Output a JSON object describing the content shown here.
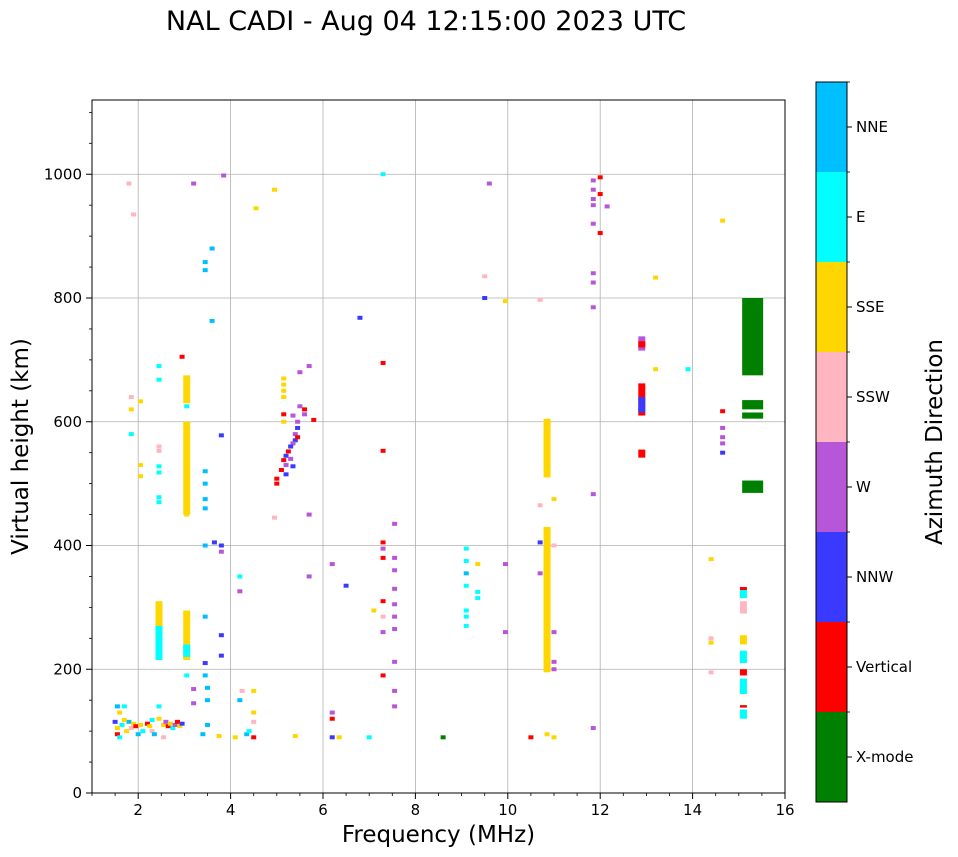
{
  "chart_data": {
    "type": "scatter",
    "title": "NAL CADI - Aug 04 12:15:00 2023 UTC",
    "xlabel": "Frequency (MHz)",
    "ylabel": "Virtual height (km)",
    "xlim": [
      1,
      16
    ],
    "ylim": [
      0,
      1120
    ],
    "x_ticks": [
      "2",
      "4",
      "6",
      "8",
      "10",
      "12",
      "14",
      "16"
    ],
    "y_ticks": [
      "0",
      "200",
      "400",
      "600",
      "800",
      "1000"
    ],
    "grid": true,
    "colorbar": {
      "label": "Azimuth Direction",
      "categories": [
        {
          "name": "X-mode",
          "color": "#008000"
        },
        {
          "name": "Vertical",
          "color": "#ff0000"
        },
        {
          "name": "NNW",
          "color": "#3a3aff"
        },
        {
          "name": "W",
          "color": "#b656d8"
        },
        {
          "name": "SSW",
          "color": "#ffb6c1"
        },
        {
          "name": "SSE",
          "color": "#ffd700"
        },
        {
          "name": "E",
          "color": "#00ffff"
        },
        {
          "name": "NNE",
          "color": "#00bfff"
        }
      ]
    },
    "echo_segments": [
      {
        "dir": "X-mode",
        "x": 15.3,
        "y0": 675,
        "y1": 800
      },
      {
        "dir": "X-mode",
        "x": 15.3,
        "y0": 620,
        "y1": 635
      },
      {
        "dir": "X-mode",
        "x": 15.3,
        "y0": 605,
        "y1": 615
      },
      {
        "dir": "X-mode",
        "x": 15.3,
        "y0": 485,
        "y1": 505
      },
      {
        "dir": "SSE",
        "x": 10.85,
        "y0": 510,
        "y1": 605
      },
      {
        "dir": "SSE",
        "x": 10.85,
        "y0": 195,
        "y1": 430
      },
      {
        "dir": "SSE",
        "x": 3.05,
        "y0": 450,
        "y1": 600
      },
      {
        "dir": "SSE",
        "x": 3.05,
        "y0": 630,
        "y1": 675
      },
      {
        "dir": "SSE",
        "x": 3.05,
        "y0": 215,
        "y1": 295
      },
      {
        "dir": "SSE",
        "x": 2.45,
        "y0": 220,
        "y1": 310
      },
      {
        "dir": "E",
        "x": 2.45,
        "y0": 215,
        "y1": 270
      },
      {
        "dir": "E",
        "x": 3.05,
        "y0": 220,
        "y1": 240
      },
      {
        "dir": "Vertical",
        "x": 12.9,
        "y0": 610,
        "y1": 662
      },
      {
        "dir": "NNW",
        "x": 12.9,
        "y0": 615,
        "y1": 640
      },
      {
        "dir": "W",
        "x": 12.9,
        "y0": 715,
        "y1": 738
      },
      {
        "dir": "Vertical",
        "x": 12.9,
        "y0": 720,
        "y1": 730
      },
      {
        "dir": "Vertical",
        "x": 12.9,
        "y0": 542,
        "y1": 555
      },
      {
        "dir": "SSW",
        "x": 15.1,
        "y0": 290,
        "y1": 310
      },
      {
        "dir": "E",
        "x": 15.1,
        "y0": 160,
        "y1": 185
      },
      {
        "dir": "E",
        "x": 15.1,
        "y0": 120,
        "y1": 135
      },
      {
        "dir": "E",
        "x": 15.1,
        "y0": 210,
        "y1": 230
      },
      {
        "dir": "E",
        "x": 15.1,
        "y0": 315,
        "y1": 330
      },
      {
        "dir": "SSE",
        "x": 15.1,
        "y0": 240,
        "y1": 255
      },
      {
        "dir": "Vertical",
        "x": 15.1,
        "y0": 190,
        "y1": 200
      },
      {
        "dir": "Vertical",
        "x": 15.1,
        "y0": 138,
        "y1": 142
      },
      {
        "dir": "Vertical",
        "x": 15.1,
        "y0": 328,
        "y1": 333
      }
    ],
    "echo_points": [
      {
        "dir": "E",
        "x": 2.45,
        "y": 690
      },
      {
        "dir": "E",
        "x": 2.45,
        "y": 668
      },
      {
        "dir": "E",
        "x": 2.45,
        "y": 528
      },
      {
        "dir": "E",
        "x": 2.45,
        "y": 518
      },
      {
        "dir": "E",
        "x": 2.45,
        "y": 478
      },
      {
        "dir": "E",
        "x": 2.45,
        "y": 470
      },
      {
        "dir": "SSW",
        "x": 2.45,
        "y": 560
      },
      {
        "dir": "SSW",
        "x": 2.45,
        "y": 553
      },
      {
        "dir": "E",
        "x": 2.45,
        "y": 140
      },
      {
        "dir": "SSE",
        "x": 2.45,
        "y": 120
      },
      {
        "dir": "NNE",
        "x": 3.45,
        "y": 858
      },
      {
        "dir": "NNE",
        "x": 3.45,
        "y": 845
      },
      {
        "dir": "NNE",
        "x": 3.6,
        "y": 880
      },
      {
        "dir": "NNE",
        "x": 3.6,
        "y": 763
      },
      {
        "dir": "NNE",
        "x": 3.45,
        "y": 520
      },
      {
        "dir": "NNE",
        "x": 3.45,
        "y": 500
      },
      {
        "dir": "NNE",
        "x": 3.45,
        "y": 475
      },
      {
        "dir": "NNE",
        "x": 3.45,
        "y": 460
      },
      {
        "dir": "NNE",
        "x": 3.45,
        "y": 400
      },
      {
        "dir": "NNE",
        "x": 3.45,
        "y": 285
      },
      {
        "dir": "NNW",
        "x": 3.45,
        "y": 210
      },
      {
        "dir": "NNE",
        "x": 3.45,
        "y": 190
      },
      {
        "dir": "NNE",
        "x": 3.5,
        "y": 170
      },
      {
        "dir": "NNE",
        "x": 3.5,
        "y": 150
      },
      {
        "dir": "NNE",
        "x": 3.5,
        "y": 110
      },
      {
        "dir": "NNE",
        "x": 3.4,
        "y": 95
      },
      {
        "dir": "NNW",
        "x": 3.8,
        "y": 400
      },
      {
        "dir": "W",
        "x": 3.8,
        "y": 390
      },
      {
        "dir": "NNW",
        "x": 3.8,
        "y": 255
      },
      {
        "dir": "NNW",
        "x": 3.8,
        "y": 222
      },
      {
        "dir": "NNW",
        "x": 3.65,
        "y": 405
      },
      {
        "dir": "NNW",
        "x": 3.8,
        "y": 578
      },
      {
        "dir": "E",
        "x": 4.2,
        "y": 350
      },
      {
        "dir": "W",
        "x": 4.2,
        "y": 326
      },
      {
        "dir": "NNE",
        "x": 4.2,
        "y": 150
      },
      {
        "dir": "NNE",
        "x": 4.35,
        "y": 95
      },
      {
        "dir": "E",
        "x": 4.4,
        "y": 100
      },
      {
        "dir": "SSW",
        "x": 4.5,
        "y": 115
      },
      {
        "dir": "SSE",
        "x": 4.5,
        "y": 130
      },
      {
        "dir": "SSE",
        "x": 4.5,
        "y": 165
      },
      {
        "dir": "SSW",
        "x": 4.25,
        "y": 165
      },
      {
        "dir": "Vertical",
        "x": 4.5,
        "y": 90
      },
      {
        "dir": "SSE",
        "x": 3.75,
        "y": 92
      },
      {
        "dir": "SSE",
        "x": 4.1,
        "y": 90
      },
      {
        "dir": "SSE",
        "x": 4.55,
        "y": 945
      },
      {
        "dir": "SSE",
        "x": 4.95,
        "y": 975
      },
      {
        "dir": "W",
        "x": 3.85,
        "y": 998
      },
      {
        "dir": "W",
        "x": 3.2,
        "y": 985
      },
      {
        "dir": "SSW",
        "x": 1.8,
        "y": 985
      },
      {
        "dir": "SSW",
        "x": 1.9,
        "y": 935
      },
      {
        "dir": "SSW",
        "x": 1.85,
        "y": 640
      },
      {
        "dir": "SSE",
        "x": 2.05,
        "y": 633
      },
      {
        "dir": "SSE",
        "x": 1.85,
        "y": 620
      },
      {
        "dir": "E",
        "x": 1.85,
        "y": 580
      },
      {
        "dir": "SSE",
        "x": 2.05,
        "y": 530
      },
      {
        "dir": "SSE",
        "x": 2.05,
        "y": 512
      },
      {
        "dir": "SSE",
        "x": 3.05,
        "y": 450
      },
      {
        "dir": "W",
        "x": 3.2,
        "y": 168
      },
      {
        "dir": "E",
        "x": 3.05,
        "y": 190
      },
      {
        "dir": "W",
        "x": 3.2,
        "y": 145
      },
      {
        "dir": "E",
        "x": 3.05,
        "y": 625
      },
      {
        "dir": "Vertical",
        "x": 2.95,
        "y": 705
      },
      {
        "dir": "NNE",
        "x": 1.55,
        "y": 140
      },
      {
        "dir": "SSE",
        "x": 1.6,
        "y": 130
      },
      {
        "dir": "E",
        "x": 1.7,
        "y": 140
      },
      {
        "dir": "NNW",
        "x": 1.5,
        "y": 115
      },
      {
        "dir": "SSE",
        "x": 1.55,
        "y": 105
      },
      {
        "dir": "Vertical",
        "x": 1.55,
        "y": 95
      },
      {
        "dir": "E",
        "x": 1.65,
        "y": 110
      },
      {
        "dir": "SSE",
        "x": 1.75,
        "y": 100
      },
      {
        "dir": "NNE",
        "x": 1.8,
        "y": 115
      },
      {
        "dir": "SSW",
        "x": 1.85,
        "y": 105
      },
      {
        "dir": "SSE",
        "x": 1.9,
        "y": 112
      },
      {
        "dir": "Vertical",
        "x": 1.95,
        "y": 108
      },
      {
        "dir": "NNE",
        "x": 2.0,
        "y": 95
      },
      {
        "dir": "SSE",
        "x": 2.05,
        "y": 110
      },
      {
        "dir": "E",
        "x": 2.1,
        "y": 100
      },
      {
        "dir": "Vertical",
        "x": 2.2,
        "y": 112
      },
      {
        "dir": "SSE",
        "x": 2.25,
        "y": 108
      },
      {
        "dir": "SSW",
        "x": 2.3,
        "y": 100
      },
      {
        "dir": "NNE",
        "x": 2.35,
        "y": 95
      },
      {
        "dir": "SSE",
        "x": 2.55,
        "y": 110
      },
      {
        "dir": "W",
        "x": 2.6,
        "y": 115
      },
      {
        "dir": "Vertical",
        "x": 2.65,
        "y": 108
      },
      {
        "dir": "SSE",
        "x": 2.7,
        "y": 112
      },
      {
        "dir": "E",
        "x": 2.75,
        "y": 105
      },
      {
        "dir": "W",
        "x": 2.8,
        "y": 110
      },
      {
        "dir": "Vertical",
        "x": 2.85,
        "y": 115
      },
      {
        "dir": "SSE",
        "x": 2.9,
        "y": 108
      },
      {
        "dir": "NNW",
        "x": 2.95,
        "y": 112
      },
      {
        "dir": "SSW",
        "x": 2.55,
        "y": 90
      },
      {
        "dir": "E",
        "x": 1.6,
        "y": 90
      },
      {
        "dir": "SSE",
        "x": 1.7,
        "y": 118
      },
      {
        "dir": "E",
        "x": 2.3,
        "y": 118
      },
      {
        "dir": "SSE",
        "x": 5.15,
        "y": 670
      },
      {
        "dir": "SSE",
        "x": 5.15,
        "y": 660
      },
      {
        "dir": "SSE",
        "x": 5.15,
        "y": 650
      },
      {
        "dir": "SSE",
        "x": 5.15,
        "y": 640
      },
      {
        "dir": "Vertical",
        "x": 5.15,
        "y": 612
      },
      {
        "dir": "SSE",
        "x": 5.15,
        "y": 600
      },
      {
        "dir": "W",
        "x": 5.35,
        "y": 610
      },
      {
        "dir": "W",
        "x": 5.5,
        "y": 625
      },
      {
        "dir": "Vertical",
        "x": 5.6,
        "y": 620
      },
      {
        "dir": "W",
        "x": 5.6,
        "y": 612
      },
      {
        "dir": "Vertical",
        "x": 5.8,
        "y": 603
      },
      {
        "dir": "W",
        "x": 5.45,
        "y": 600
      },
      {
        "dir": "NNW",
        "x": 5.45,
        "y": 590
      },
      {
        "dir": "W",
        "x": 5.4,
        "y": 580
      },
      {
        "dir": "NNW",
        "x": 5.4,
        "y": 570
      },
      {
        "dir": "W",
        "x": 5.35,
        "y": 565
      },
      {
        "dir": "NNW",
        "x": 5.3,
        "y": 560
      },
      {
        "dir": "Vertical",
        "x": 5.25,
        "y": 552
      },
      {
        "dir": "NNW",
        "x": 5.2,
        "y": 545
      },
      {
        "dir": "Vertical",
        "x": 5.15,
        "y": 538
      },
      {
        "dir": "W",
        "x": 5.2,
        "y": 530
      },
      {
        "dir": "Vertical",
        "x": 5.1,
        "y": 522
      },
      {
        "dir": "NNW",
        "x": 5.2,
        "y": 515
      },
      {
        "dir": "Vertical",
        "x": 5.0,
        "y": 508
      },
      {
        "dir": "Vertical",
        "x": 5.0,
        "y": 500
      },
      {
        "dir": "W",
        "x": 5.3,
        "y": 540
      },
      {
        "dir": "NNW",
        "x": 5.35,
        "y": 528
      },
      {
        "dir": "Vertical",
        "x": 5.45,
        "y": 575
      },
      {
        "dir": "W",
        "x": 5.5,
        "y": 680
      },
      {
        "dir": "W",
        "x": 5.7,
        "y": 690
      },
      {
        "dir": "SSW",
        "x": 4.95,
        "y": 445
      },
      {
        "dir": "W",
        "x": 5.7,
        "y": 450
      },
      {
        "dir": "W",
        "x": 5.7,
        "y": 350
      },
      {
        "dir": "W",
        "x": 6.2,
        "y": 370
      },
      {
        "dir": "NNW",
        "x": 6.5,
        "y": 335
      },
      {
        "dir": "W",
        "x": 6.2,
        "y": 130
      },
      {
        "dir": "Vertical",
        "x": 6.2,
        "y": 120
      },
      {
        "dir": "NNW",
        "x": 6.2,
        "y": 90
      },
      {
        "dir": "SSE",
        "x": 6.35,
        "y": 90
      },
      {
        "dir": "SSE",
        "x": 5.4,
        "y": 92
      },
      {
        "dir": "NNW",
        "x": 6.8,
        "y": 768
      },
      {
        "dir": "E",
        "x": 7.3,
        "y": 1000
      },
      {
        "dir": "Vertical",
        "x": 7.3,
        "y": 695
      },
      {
        "dir": "Vertical",
        "x": 7.3,
        "y": 553
      },
      {
        "dir": "Vertical",
        "x": 7.3,
        "y": 405
      },
      {
        "dir": "W",
        "x": 7.3,
        "y": 395
      },
      {
        "dir": "Vertical",
        "x": 7.3,
        "y": 380
      },
      {
        "dir": "W",
        "x": 7.55,
        "y": 435
      },
      {
        "dir": "W",
        "x": 7.55,
        "y": 380
      },
      {
        "dir": "W",
        "x": 7.55,
        "y": 360
      },
      {
        "dir": "W",
        "x": 7.55,
        "y": 330
      },
      {
        "dir": "Vertical",
        "x": 7.3,
        "y": 310
      },
      {
        "dir": "W",
        "x": 7.55,
        "y": 305
      },
      {
        "dir": "SSE",
        "x": 7.1,
        "y": 295
      },
      {
        "dir": "SSW",
        "x": 7.3,
        "y": 285
      },
      {
        "dir": "W",
        "x": 7.55,
        "y": 285
      },
      {
        "dir": "W",
        "x": 7.3,
        "y": 260
      },
      {
        "dir": "W",
        "x": 7.55,
        "y": 265
      },
      {
        "dir": "W",
        "x": 7.55,
        "y": 212
      },
      {
        "dir": "Vertical",
        "x": 7.3,
        "y": 190
      },
      {
        "dir": "W",
        "x": 7.55,
        "y": 165
      },
      {
        "dir": "W",
        "x": 7.55,
        "y": 140
      },
      {
        "dir": "E",
        "x": 7.0,
        "y": 90
      },
      {
        "dir": "X-mode",
        "x": 8.6,
        "y": 90
      },
      {
        "dir": "E",
        "x": 9.1,
        "y": 395
      },
      {
        "dir": "E",
        "x": 9.1,
        "y": 375
      },
      {
        "dir": "SSE",
        "x": 9.35,
        "y": 370
      },
      {
        "dir": "NNE",
        "x": 9.1,
        "y": 355
      },
      {
        "dir": "E",
        "x": 9.1,
        "y": 335
      },
      {
        "dir": "E",
        "x": 9.35,
        "y": 325
      },
      {
        "dir": "E",
        "x": 9.35,
        "y": 315
      },
      {
        "dir": "E",
        "x": 9.1,
        "y": 295
      },
      {
        "dir": "E",
        "x": 9.1,
        "y": 285
      },
      {
        "dir": "E",
        "x": 9.1,
        "y": 270
      },
      {
        "dir": "W",
        "x": 9.95,
        "y": 370
      },
      {
        "dir": "W",
        "x": 9.95,
        "y": 260
      },
      {
        "dir": "SSW",
        "x": 9.5,
        "y": 835
      },
      {
        "dir": "NNW",
        "x": 9.5,
        "y": 800
      },
      {
        "dir": "SSE",
        "x": 9.95,
        "y": 795
      },
      {
        "dir": "W",
        "x": 9.6,
        "y": 985
      },
      {
        "dir": "SSW",
        "x": 10.7,
        "y": 797
      },
      {
        "dir": "SSW",
        "x": 10.7,
        "y": 465
      },
      {
        "dir": "SSE",
        "x": 11.0,
        "y": 475
      },
      {
        "dir": "NNW",
        "x": 10.7,
        "y": 405
      },
      {
        "dir": "W",
        "x": 10.7,
        "y": 355
      },
      {
        "dir": "W",
        "x": 11.0,
        "y": 260
      },
      {
        "dir": "W",
        "x": 11.0,
        "y": 212
      },
      {
        "dir": "W",
        "x": 11.0,
        "y": 200
      },
      {
        "dir": "SSE",
        "x": 10.85,
        "y": 95
      },
      {
        "dir": "Vertical",
        "x": 10.5,
        "y": 90
      },
      {
        "dir": "SSE",
        "x": 11.0,
        "y": 90
      },
      {
        "dir": "SSW",
        "x": 11.0,
        "y": 400
      },
      {
        "dir": "W",
        "x": 11.85,
        "y": 990
      },
      {
        "dir": "W",
        "x": 11.85,
        "y": 975
      },
      {
        "dir": "W",
        "x": 11.85,
        "y": 960
      },
      {
        "dir": "W",
        "x": 11.85,
        "y": 950
      },
      {
        "dir": "W",
        "x": 11.85,
        "y": 920
      },
      {
        "dir": "W",
        "x": 11.85,
        "y": 840
      },
      {
        "dir": "W",
        "x": 11.85,
        "y": 825
      },
      {
        "dir": "W",
        "x": 11.85,
        "y": 785
      },
      {
        "dir": "Vertical",
        "x": 12.0,
        "y": 995
      },
      {
        "dir": "Vertical",
        "x": 12.0,
        "y": 968
      },
      {
        "dir": "W",
        "x": 12.15,
        "y": 948
      },
      {
        "dir": "Vertical",
        "x": 12.0,
        "y": 905
      },
      {
        "dir": "W",
        "x": 11.85,
        "y": 483
      },
      {
        "dir": "W",
        "x": 11.85,
        "y": 105
      },
      {
        "dir": "SSE",
        "x": 13.2,
        "y": 833
      },
      {
        "dir": "SSE",
        "x": 13.2,
        "y": 685
      },
      {
        "dir": "E",
        "x": 13.9,
        "y": 685
      },
      {
        "dir": "SSE",
        "x": 14.65,
        "y": 925
      },
      {
        "dir": "Vertical",
        "x": 14.65,
        "y": 617
      },
      {
        "dir": "W",
        "x": 14.65,
        "y": 590
      },
      {
        "dir": "W",
        "x": 14.65,
        "y": 575
      },
      {
        "dir": "W",
        "x": 14.65,
        "y": 565
      },
      {
        "dir": "NNW",
        "x": 14.65,
        "y": 550
      },
      {
        "dir": "SSE",
        "x": 14.4,
        "y": 378
      },
      {
        "dir": "SSW",
        "x": 14.4,
        "y": 250
      },
      {
        "dir": "SSE",
        "x": 14.4,
        "y": 243
      },
      {
        "dir": "SSW",
        "x": 14.4,
        "y": 195
      }
    ]
  }
}
